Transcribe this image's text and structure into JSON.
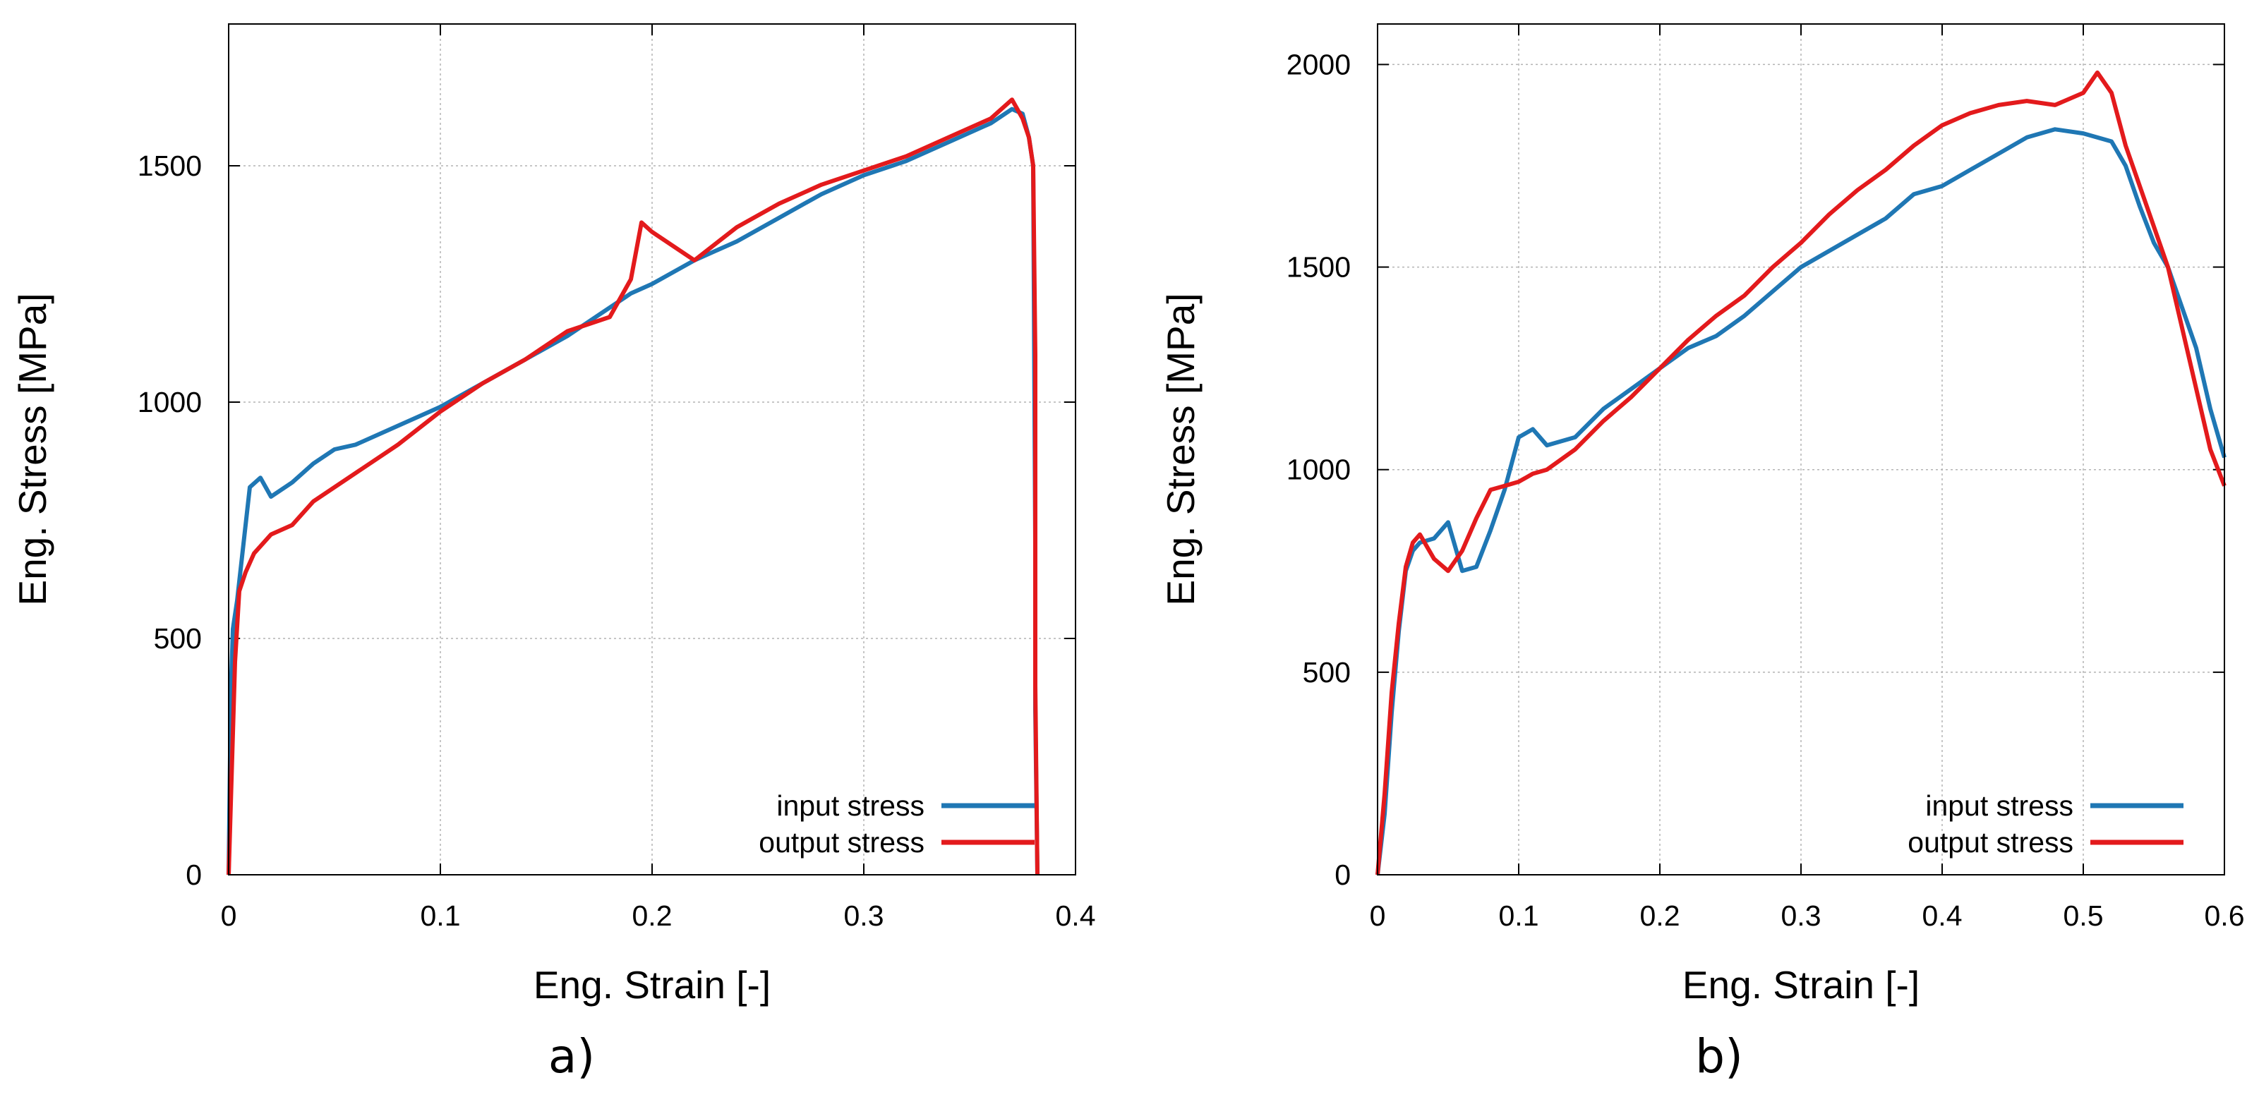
{
  "colors": {
    "input": "#1f77b4",
    "output": "#e31a1c",
    "grid": "#b3b3b3",
    "frame": "#000000"
  },
  "chart_data": [
    {
      "type": "line",
      "panel_label": "a)",
      "xlabel": "Eng. Strain [-]",
      "ylabel": "Eng. Stress [MPa]",
      "xlim": [
        0,
        0.4
      ],
      "ylim": [
        0,
        1800
      ],
      "xticks": [
        0,
        0.1,
        0.2,
        0.3,
        0.4
      ],
      "xtick_labels": [
        "0",
        "0.1",
        "0.2",
        "0.3",
        "0.4"
      ],
      "yticks": [
        0,
        500,
        1000,
        1500
      ],
      "ytick_labels": [
        "0",
        "500",
        "1000",
        "1500"
      ],
      "grid": true,
      "legend_position": "bottom-right",
      "series": [
        {
          "name": "input stress",
          "color": "#1f77b4",
          "x": [
            0,
            0.001,
            0.002,
            0.004,
            0.007,
            0.01,
            0.015,
            0.02,
            0.03,
            0.04,
            0.05,
            0.06,
            0.08,
            0.1,
            0.12,
            0.14,
            0.16,
            0.18,
            0.19,
            0.2,
            0.22,
            0.24,
            0.26,
            0.28,
            0.3,
            0.32,
            0.34,
            0.36,
            0.37,
            0.375,
            0.378,
            0.38,
            0.381,
            0.381,
            0.382
          ],
          "y": [
            0,
            380,
            520,
            580,
            700,
            820,
            840,
            800,
            830,
            870,
            900,
            910,
            950,
            990,
            1040,
            1090,
            1140,
            1200,
            1230,
            1250,
            1300,
            1340,
            1390,
            1440,
            1480,
            1510,
            1550,
            1590,
            1620,
            1610,
            1560,
            1500,
            700,
            350,
            0
          ]
        },
        {
          "name": "output stress",
          "color": "#e31a1c",
          "x": [
            0,
            0.001,
            0.003,
            0.005,
            0.008,
            0.012,
            0.02,
            0.03,
            0.04,
            0.06,
            0.08,
            0.1,
            0.12,
            0.14,
            0.16,
            0.18,
            0.19,
            0.195,
            0.2,
            0.21,
            0.22,
            0.24,
            0.26,
            0.28,
            0.3,
            0.32,
            0.34,
            0.36,
            0.37,
            0.375,
            0.378,
            0.38,
            0.381,
            0.381,
            0.382
          ],
          "y": [
            0,
            150,
            450,
            600,
            640,
            680,
            720,
            740,
            790,
            850,
            910,
            980,
            1040,
            1090,
            1150,
            1180,
            1260,
            1380,
            1360,
            1330,
            1300,
            1370,
            1420,
            1460,
            1490,
            1520,
            1560,
            1600,
            1640,
            1600,
            1560,
            1500,
            1100,
            400,
            0
          ]
        }
      ]
    },
    {
      "type": "line",
      "panel_label": "b)",
      "xlabel": "Eng. Strain [-]",
      "ylabel": "Eng. Stress [MPa]",
      "xlim": [
        0,
        0.6
      ],
      "ylim": [
        0,
        2100
      ],
      "xticks": [
        0,
        0.1,
        0.2,
        0.3,
        0.4,
        0.5,
        0.6
      ],
      "xtick_labels": [
        "0",
        "0.1",
        "0.2",
        "0.3",
        "0.4",
        "0.5",
        "0.6"
      ],
      "yticks": [
        0,
        500,
        1000,
        1500,
        2000
      ],
      "ytick_labels": [
        "0",
        "500",
        "1000",
        "1500",
        "2000"
      ],
      "grid": true,
      "legend_position": "bottom-right",
      "series": [
        {
          "name": "input stress",
          "color": "#1f77b4",
          "x": [
            0,
            0.005,
            0.01,
            0.015,
            0.02,
            0.025,
            0.03,
            0.04,
            0.05,
            0.06,
            0.07,
            0.08,
            0.09,
            0.1,
            0.11,
            0.12,
            0.14,
            0.16,
            0.18,
            0.2,
            0.22,
            0.24,
            0.26,
            0.28,
            0.3,
            0.32,
            0.34,
            0.36,
            0.38,
            0.4,
            0.42,
            0.44,
            0.46,
            0.48,
            0.5,
            0.52,
            0.53,
            0.54,
            0.55,
            0.56,
            0.58,
            0.59,
            0.6
          ],
          "y": [
            0,
            150,
            400,
            600,
            750,
            800,
            820,
            830,
            870,
            750,
            760,
            850,
            950,
            1080,
            1100,
            1060,
            1080,
            1150,
            1200,
            1250,
            1300,
            1330,
            1380,
            1440,
            1500,
            1540,
            1580,
            1620,
            1680,
            1700,
            1740,
            1780,
            1820,
            1840,
            1830,
            1810,
            1750,
            1650,
            1560,
            1500,
            1300,
            1150,
            1030
          ]
        },
        {
          "name": "output stress",
          "color": "#e31a1c",
          "x": [
            0,
            0.005,
            0.01,
            0.015,
            0.02,
            0.025,
            0.03,
            0.04,
            0.05,
            0.06,
            0.07,
            0.08,
            0.09,
            0.1,
            0.11,
            0.12,
            0.14,
            0.16,
            0.18,
            0.2,
            0.22,
            0.24,
            0.26,
            0.28,
            0.3,
            0.32,
            0.34,
            0.36,
            0.38,
            0.4,
            0.42,
            0.44,
            0.46,
            0.48,
            0.5,
            0.51,
            0.52,
            0.53,
            0.54,
            0.55,
            0.56,
            0.58,
            0.59,
            0.6
          ],
          "y": [
            0,
            200,
            450,
            620,
            760,
            820,
            840,
            780,
            750,
            800,
            880,
            950,
            960,
            970,
            990,
            1000,
            1050,
            1120,
            1180,
            1250,
            1320,
            1380,
            1430,
            1500,
            1560,
            1630,
            1690,
            1740,
            1800,
            1850,
            1880,
            1900,
            1910,
            1900,
            1930,
            1980,
            1930,
            1800,
            1700,
            1600,
            1500,
            1200,
            1050,
            960
          ]
        }
      ]
    }
  ]
}
